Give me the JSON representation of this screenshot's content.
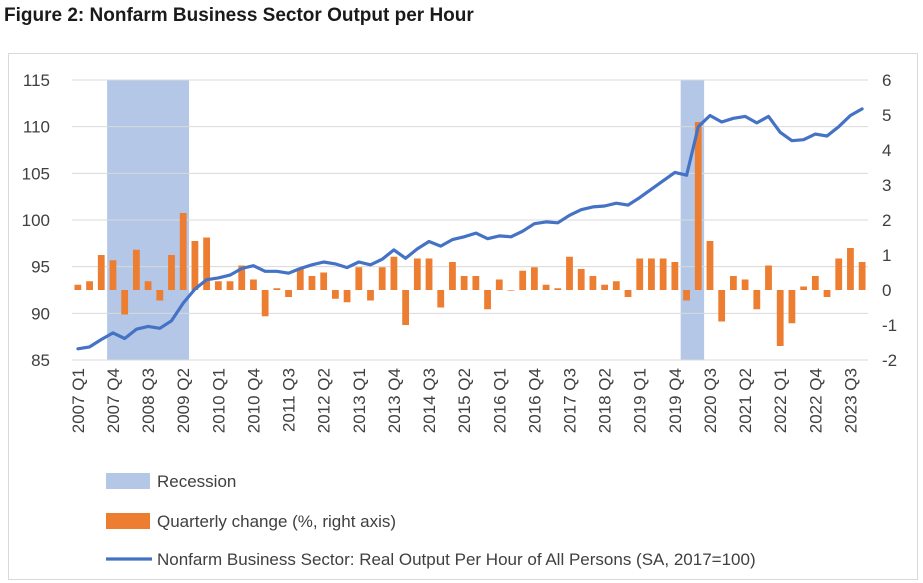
{
  "figure_title": "Figure 2: Nonfarm Business Sector Output per Hour",
  "chart_data": {
    "type": "bar-line combo",
    "left_axis": {
      "ylim": [
        85,
        115
      ],
      "ticks": [
        85,
        90,
        95,
        100,
        105,
        110,
        115
      ]
    },
    "right_axis": {
      "ylim": [
        -2,
        6
      ],
      "ticks": [
        -2,
        -1,
        0,
        1,
        2,
        3,
        4,
        5,
        6
      ]
    },
    "x_tick_labels": [
      "2007 Q1",
      "2007 Q4",
      "2008 Q3",
      "2009 Q2",
      "2010 Q1",
      "2010 Q4",
      "2011 Q3",
      "2012 Q2",
      "2013 Q1",
      "2013 Q4",
      "2014 Q3",
      "2015 Q2",
      "2016 Q1",
      "2016 Q4",
      "2017 Q3",
      "2018 Q2",
      "2019 Q1",
      "2019 Q4",
      "2020 Q3",
      "2021 Q2",
      "2022 Q1",
      "2022 Q4",
      "2023 Q3"
    ],
    "quarters": [
      "2007 Q1",
      "2007 Q2",
      "2007 Q3",
      "2007 Q4",
      "2008 Q1",
      "2008 Q2",
      "2008 Q3",
      "2008 Q4",
      "2009 Q1",
      "2009 Q2",
      "2009 Q3",
      "2009 Q4",
      "2010 Q1",
      "2010 Q2",
      "2010 Q3",
      "2010 Q4",
      "2011 Q1",
      "2011 Q2",
      "2011 Q3",
      "2011 Q4",
      "2012 Q1",
      "2012 Q2",
      "2012 Q3",
      "2012 Q4",
      "2013 Q1",
      "2013 Q2",
      "2013 Q3",
      "2013 Q4",
      "2014 Q1",
      "2014 Q2",
      "2014 Q3",
      "2014 Q4",
      "2015 Q1",
      "2015 Q2",
      "2015 Q3",
      "2015 Q4",
      "2016 Q1",
      "2016 Q2",
      "2016 Q3",
      "2016 Q4",
      "2017 Q1",
      "2017 Q2",
      "2017 Q3",
      "2017 Q4",
      "2018 Q1",
      "2018 Q2",
      "2018 Q3",
      "2018 Q4",
      "2019 Q1",
      "2019 Q2",
      "2019 Q3",
      "2019 Q4",
      "2020 Q1",
      "2020 Q2",
      "2020 Q3",
      "2020 Q4",
      "2021 Q1",
      "2021 Q2",
      "2021 Q3",
      "2021 Q4",
      "2022 Q1",
      "2022 Q2",
      "2022 Q3",
      "2022 Q4",
      "2023 Q1",
      "2023 Q2",
      "2023 Q3",
      "2023 Q4"
    ],
    "series": [
      {
        "name": "Quarterly change (%, right axis)",
        "axis": "right",
        "type": "bar",
        "color": "#ED7D31",
        "values": [
          0.15,
          0.25,
          1.0,
          0.85,
          -0.7,
          1.15,
          0.25,
          -0.3,
          1.0,
          2.2,
          1.4,
          1.5,
          0.25,
          0.25,
          0.7,
          0.3,
          -0.75,
          0.05,
          -0.2,
          0.6,
          0.4,
          0.5,
          -0.25,
          -0.35,
          0.65,
          -0.3,
          0.65,
          0.95,
          -1.0,
          0.9,
          0.9,
          -0.5,
          0.8,
          0.4,
          0.4,
          -0.55,
          0.3,
          0.0,
          0.55,
          0.65,
          0.15,
          0.05,
          0.95,
          0.6,
          0.4,
          0.15,
          0.25,
          -0.2,
          0.9,
          0.9,
          0.9,
          0.8,
          -0.3,
          4.8,
          1.4,
          -0.9,
          0.4,
          0.3,
          -0.55,
          0.7,
          -1.6,
          -0.95,
          0.1,
          0.4,
          -0.2,
          0.9,
          1.2,
          0.8
        ]
      },
      {
        "name": "Nonfarm Business Sector: Real Output Per Hour of All Persons (SA, 2017=100)",
        "axis": "left",
        "type": "line",
        "color": "#4472C4",
        "values": [
          86.2,
          86.4,
          87.2,
          87.9,
          87.3,
          88.3,
          88.6,
          88.4,
          89.2,
          91.1,
          92.6,
          93.6,
          93.8,
          94.1,
          94.8,
          95.1,
          94.5,
          94.5,
          94.3,
          94.8,
          95.2,
          95.5,
          95.3,
          94.9,
          95.5,
          95.2,
          95.8,
          96.8,
          95.9,
          96.9,
          97.7,
          97.2,
          97.9,
          98.2,
          98.6,
          98.0,
          98.3,
          98.2,
          98.8,
          99.6,
          99.8,
          99.7,
          100.5,
          101.1,
          101.4,
          101.5,
          101.8,
          101.6,
          102.4,
          103.3,
          104.2,
          105.1,
          104.8,
          110.0,
          111.2,
          110.5,
          110.9,
          111.1,
          110.4,
          111.1,
          109.4,
          108.5,
          108.6,
          109.2,
          109.0,
          110.0,
          111.2,
          111.9
        ]
      }
    ],
    "recessions": [
      {
        "start": "2007 Q4",
        "end": "2009 Q2",
        "color": "#B4C7E7"
      },
      {
        "start": "2020 Q1",
        "end": "2020 Q2",
        "color": "#B4C7E7"
      }
    ],
    "legend": {
      "placement": "bottom",
      "items": [
        "Recession",
        "Quarterly change (%, right axis)",
        "Nonfarm Business Sector: Real Output Per Hour of All Persons (SA, 2017=100)"
      ]
    }
  }
}
